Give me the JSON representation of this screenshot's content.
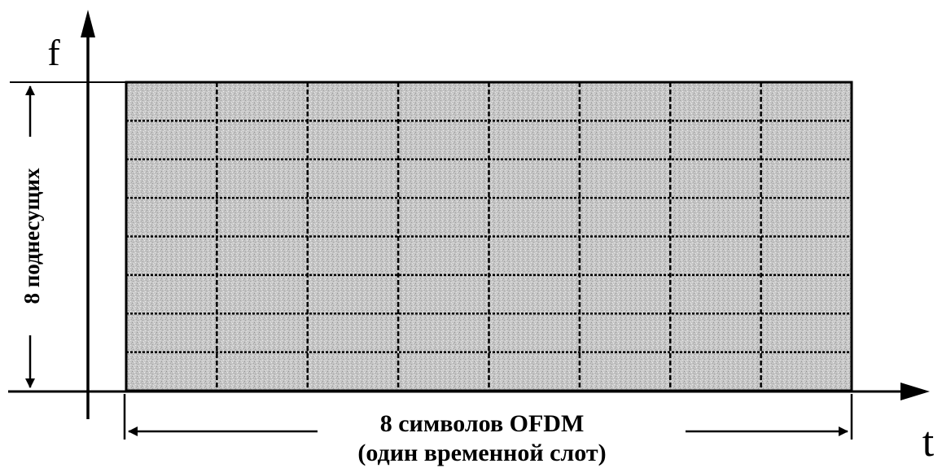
{
  "diagram": {
    "freq_axis_label": "f",
    "time_axis_label": "t",
    "subcarriers_label": "8 поднесущих",
    "symbols_label": "8 символов OFDM",
    "slot_label": "(один временной слот)",
    "grid": {
      "columns": 8,
      "rows": 8
    },
    "colors": {
      "cell_fill": "#c8c8c8",
      "line": "#000000"
    }
  }
}
